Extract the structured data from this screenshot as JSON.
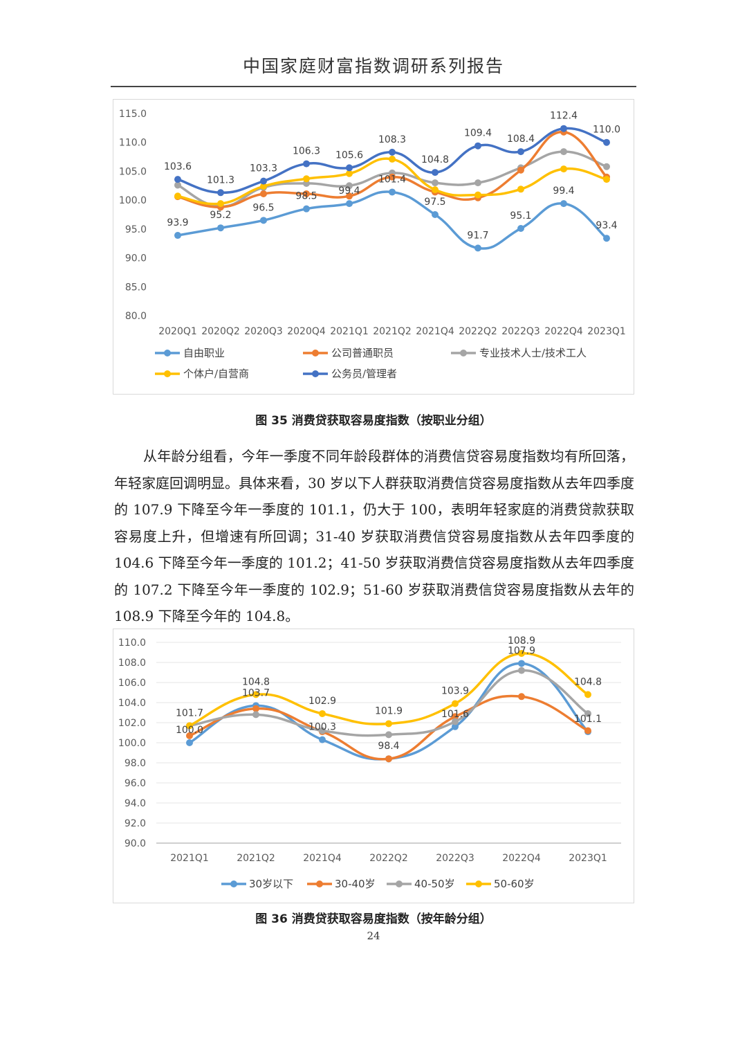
{
  "header": {
    "title": "中国家庭财富指数调研系列报告"
  },
  "caption1": "图 35 消费贷获取容易度指数（按职业分组）",
  "caption2": "图 36 消费贷获取容易度指数（按年龄分组）",
  "paragraph": "从年龄分组看，今年一季度不同年龄段群体的消费信贷容易度指数均有所回落，年轻家庭回调明显。具体来看，30 岁以下人群获取消费信贷容易度指数从去年四季度的 107.9 下降至今年一季度的 101.1，仍大于 100，表明年轻家庭的消费贷款获取容易度上升，但增速有所回调；31-40 岁获取消费信贷容易度指数从去年四季度的 104.6 下降至今年一季度的 101.2；41-50 岁获取消费信贷容易度指数从去年四季度的 107.2 下降至今年一季度的 102.9；51-60 岁获取消费信贷容易度指数从去年的 108.9 下降至今年的 104.8。",
  "page_number": "24",
  "chart_data": [
    {
      "type": "line",
      "title": "",
      "xlabel": "",
      "ylabel": "",
      "ylim": [
        80,
        115
      ],
      "yticks": [
        "80.0",
        "85.0",
        "90.0",
        "95.0",
        "100.0",
        "105.0",
        "110.0",
        "115.0"
      ],
      "categories": [
        "2020Q1",
        "2020Q2",
        "2020Q3",
        "2020Q4",
        "2021Q1",
        "2021Q2",
        "2021Q4",
        "2022Q2",
        "2022Q3",
        "2022Q4",
        "2023Q1"
      ],
      "legend_position": "bottom",
      "grid": false,
      "series": [
        {
          "name": "自由职业",
          "color": "#5b9bd5",
          "labeled": true,
          "values": [
            93.9,
            95.2,
            96.5,
            98.5,
            99.4,
            101.4,
            97.5,
            91.7,
            95.1,
            99.4,
            93.4
          ]
        },
        {
          "name": "公司普通职员",
          "color": "#ed7d31",
          "labeled": false,
          "values": [
            100.6,
            98.8,
            101.1,
            101.1,
            100.7,
            104.0,
            101.4,
            100.4,
            105.2,
            111.8,
            104.0
          ]
        },
        {
          "name": "专业技术人士/技术工人",
          "color": "#a5a5a5",
          "labeled": false,
          "values": [
            102.6,
            98.9,
            102.2,
            102.9,
            102.5,
            104.7,
            103.0,
            103.0,
            105.6,
            108.4,
            105.8
          ]
        },
        {
          "name": "个体户/自营商",
          "color": "#ffc000",
          "labeled": false,
          "values": [
            100.7,
            99.4,
            102.4,
            103.7,
            104.6,
            107.1,
            101.8,
            100.9,
            101.9,
            105.4,
            103.6
          ]
        },
        {
          "name": "公务员/管理者",
          "color": "#4472c4",
          "labeled": true,
          "values": [
            103.6,
            101.3,
            103.3,
            106.3,
            105.6,
            108.3,
            104.8,
            109.4,
            108.4,
            112.4,
            110.0
          ]
        }
      ],
      "data_labels": [
        "103.6",
        "101.3",
        "103.3",
        "106.3",
        "105.6",
        "108.3",
        "104.8",
        "109.4",
        "108.4",
        "112.4",
        "110.0",
        "93.9",
        "95.2",
        "96.5",
        "98.5",
        "99.4",
        "101.4",
        "97.5",
        "91.7",
        "95.1",
        "99.4",
        "93.4"
      ]
    },
    {
      "type": "line",
      "title": "",
      "xlabel": "",
      "ylabel": "",
      "ylim": [
        90,
        110
      ],
      "yticks": [
        "90.0",
        "92.0",
        "94.0",
        "96.0",
        "98.0",
        "100.0",
        "102.0",
        "104.0",
        "106.0",
        "108.0",
        "110.0"
      ],
      "categories": [
        "2021Q1",
        "2021Q2",
        "2021Q4",
        "2022Q2",
        "2022Q3",
        "2022Q4",
        "2023Q1"
      ],
      "legend_position": "bottom",
      "grid": true,
      "series": [
        {
          "name": "30岁以下",
          "color": "#5b9bd5",
          "values": [
            100.0,
            103.7,
            100.3,
            98.4,
            101.6,
            107.9,
            101.1
          ]
        },
        {
          "name": "30-40岁",
          "color": "#ed7d31",
          "values": [
            100.7,
            103.4,
            101.1,
            98.4,
            102.6,
            104.6,
            101.2
          ]
        },
        {
          "name": "40-50岁",
          "color": "#a5a5a5",
          "values": [
            101.7,
            102.8,
            101.2,
            100.8,
            102.1,
            107.2,
            102.9
          ]
        },
        {
          "name": "50-60岁",
          "color": "#ffc000",
          "values": [
            101.7,
            104.8,
            102.9,
            101.9,
            103.9,
            108.9,
            104.8
          ]
        }
      ],
      "data_labels": [
        "101.7",
        "100.0",
        "104.8",
        "103.7",
        "102.9",
        "100.3",
        "101.9",
        "98.4",
        "103.9",
        "101.6",
        "108.9",
        "107.9",
        "104.8",
        "101.1"
      ]
    }
  ]
}
